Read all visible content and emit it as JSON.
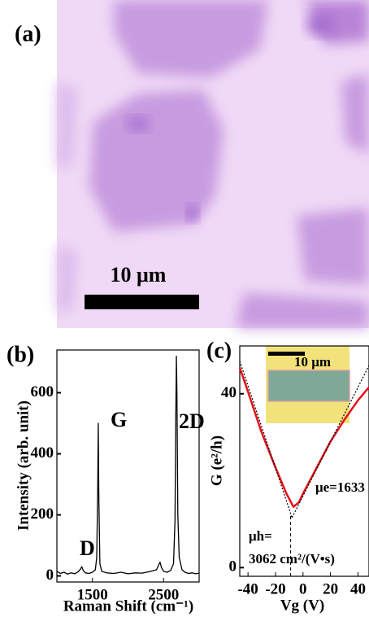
{
  "image_panel": {
    "label": "(a)",
    "scale_bar": "10 μm"
  },
  "chart_data": [
    {
      "type": "line",
      "panel_label": "(b)",
      "x_label": "Raman Shift (cm⁻¹)",
      "y_label": "Intensity (arb. unit)",
      "annotations": [
        "D",
        "G",
        "2D"
      ],
      "xlim": [
        1000,
        3000
      ],
      "ylim": [
        -20,
        740
      ],
      "xticks": [
        1500,
        2500
      ],
      "yticks": [
        0,
        200,
        400,
        600
      ],
      "series": [
        {
          "color": "#000000",
          "style": "solid",
          "x": [
            1000,
            1050,
            1100,
            1150,
            1200,
            1250,
            1300,
            1330,
            1350,
            1370,
            1400,
            1450,
            1500,
            1540,
            1560,
            1575,
            1582,
            1590,
            1605,
            1630,
            1700,
            1800,
            1900,
            2000,
            2100,
            2200,
            2300,
            2400,
            2430,
            2450,
            2470,
            2500,
            2550,
            2600,
            2640,
            2660,
            2672,
            2680,
            2688,
            2700,
            2720,
            2760,
            2800,
            2850,
            2900,
            2950,
            3000
          ],
          "values": [
            15,
            8,
            12,
            6,
            10,
            7,
            14,
            22,
            30,
            18,
            10,
            8,
            12,
            20,
            60,
            300,
            500,
            260,
            40,
            15,
            10,
            8,
            12,
            7,
            10,
            9,
            14,
            20,
            35,
            45,
            28,
            15,
            12,
            18,
            40,
            180,
            520,
            720,
            600,
            200,
            60,
            20,
            12,
            8,
            10,
            7,
            9
          ]
        }
      ]
    },
    {
      "type": "line",
      "panel_label": "(c)",
      "x_label": "Vg (V)",
      "y_label": "G (e²/h)",
      "annotations": [
        "μe=1633",
        "μh=",
        "3062 cm²/(V•s)",
        "10 μm"
      ],
      "xlim": [
        -46,
        48
      ],
      "ylim": [
        -2,
        51
      ],
      "xticks": [
        -40,
        -20,
        0,
        20,
        40
      ],
      "yticks": [
        0,
        40
      ],
      "vline": -9,
      "series": [
        {
          "color": "#e8101a",
          "style": "solid",
          "x": [
            -46,
            -40,
            -30,
            -20,
            -12,
            -7,
            -3,
            0,
            10,
            20,
            30,
            40,
            48
          ],
          "values": [
            46,
            40.5,
            31,
            23,
            17,
            14,
            15,
            17,
            23,
            29,
            34,
            38.5,
            41.5
          ]
        },
        {
          "color": "#000000",
          "style": "dotted",
          "x": [
            -46,
            -8
          ],
          "values": [
            47.5,
            11.5
          ]
        },
        {
          "color": "#000000",
          "style": "dotted",
          "x": [
            -8,
            48
          ],
          "values": [
            11.5,
            46.5
          ]
        }
      ]
    }
  ]
}
